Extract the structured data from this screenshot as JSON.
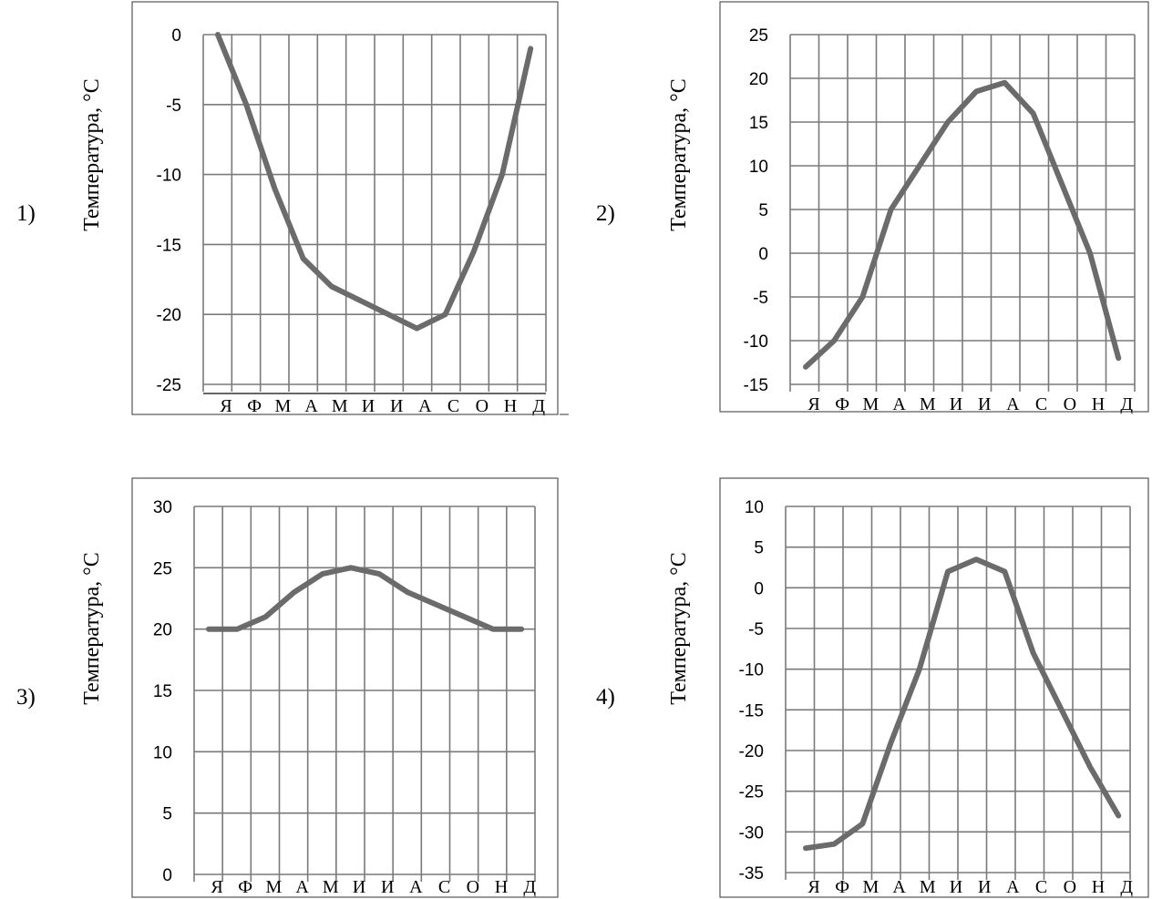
{
  "chart_data": [
    {
      "type": "line",
      "panel_number": "1)",
      "ylabel": "Температура, °С",
      "categories": [
        "Я",
        "Ф",
        "М",
        "А",
        "М",
        "И",
        "И",
        "А",
        "С",
        "О",
        "Н",
        "Д"
      ],
      "ylim": [
        -25,
        0
      ],
      "yticks": [
        "0",
        "-5",
        "-10",
        "-15",
        "-20",
        "-25"
      ],
      "series": [
        {
          "values": [
            0,
            -5,
            -11,
            -16,
            -18,
            -19,
            -20,
            -21,
            -20,
            -15.5,
            -10,
            -1
          ]
        }
      ],
      "grid": true
    },
    {
      "type": "line",
      "panel_number": "2)",
      "ylabel": "Температура, °С",
      "categories": [
        "Я",
        "Ф",
        "М",
        "А",
        "М",
        "И",
        "И",
        "А",
        "С",
        "О",
        "Н",
        "Д"
      ],
      "ylim": [
        -15,
        25
      ],
      "yticks": [
        "25",
        "20",
        "15",
        "10",
        "5",
        "0",
        "-5",
        "-10",
        "-15"
      ],
      "series": [
        {
          "values": [
            -13,
            -10,
            -5,
            5,
            10,
            15,
            18.5,
            19.5,
            16,
            8,
            0,
            -12
          ]
        }
      ],
      "grid": true
    },
    {
      "type": "line",
      "panel_number": "3)",
      "ylabel": "Температура, °С",
      "categories": [
        "Я",
        "Ф",
        "М",
        "А",
        "М",
        "И",
        "И",
        "А",
        "С",
        "О",
        "Н",
        "Д"
      ],
      "ylim": [
        0,
        30
      ],
      "yticks": [
        "30",
        "25",
        "20",
        "15",
        "10",
        "5",
        "0"
      ],
      "series": [
        {
          "values": [
            20,
            20,
            21,
            23,
            24.5,
            25,
            24.5,
            23,
            22,
            21,
            20,
            20
          ]
        }
      ],
      "grid": true
    },
    {
      "type": "line",
      "panel_number": "4)",
      "ylabel": "Температура, °С",
      "categories": [
        "Я",
        "Ф",
        "М",
        "А",
        "М",
        "И",
        "И",
        "А",
        "С",
        "О",
        "Н",
        "Д"
      ],
      "ylim": [
        -35,
        10
      ],
      "yticks": [
        "10",
        "5",
        "0",
        "-5",
        "-10",
        "-15",
        "-20",
        "-25",
        "-30",
        "-35"
      ],
      "series": [
        {
          "values": [
            -32,
            -31.5,
            -29,
            -19,
            -10,
            2,
            3.5,
            2,
            -8,
            -15,
            -22,
            -28
          ]
        }
      ],
      "grid": true
    }
  ]
}
